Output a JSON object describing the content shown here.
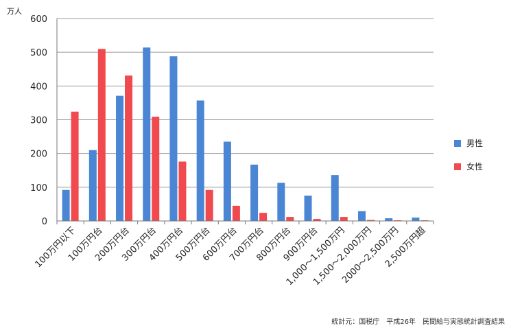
{
  "chart_data": {
    "type": "bar",
    "unit_label": "万人",
    "categories": [
      "100万円以下",
      "100万円台",
      "200万円台",
      "300万円台",
      "400万円台",
      "500万円台",
      "600万円台",
      "700万円台",
      "800万円台",
      "900万円台",
      "1,000～1,500万円",
      "1,500～2,000万円",
      "2000～2,500万円",
      "2,500万円超"
    ],
    "series": [
      {
        "name": "男性",
        "color": "#4a86d4",
        "values": [
          92,
          210,
          371,
          514,
          488,
          357,
          235,
          167,
          113,
          75,
          136,
          29,
          8,
          10
        ]
      },
      {
        "name": "女性",
        "color": "#f04a4e",
        "values": [
          324,
          510,
          431,
          309,
          176,
          92,
          45,
          24,
          12,
          6,
          12,
          3,
          2,
          2
        ]
      }
    ],
    "ylim": [
      0,
      600
    ],
    "yticks": [
      0,
      100,
      200,
      300,
      400,
      500,
      600
    ],
    "grid": true,
    "legend_position": "right",
    "source": "統計元：国税庁　平成26年　民間給与実態統計調査結果"
  }
}
